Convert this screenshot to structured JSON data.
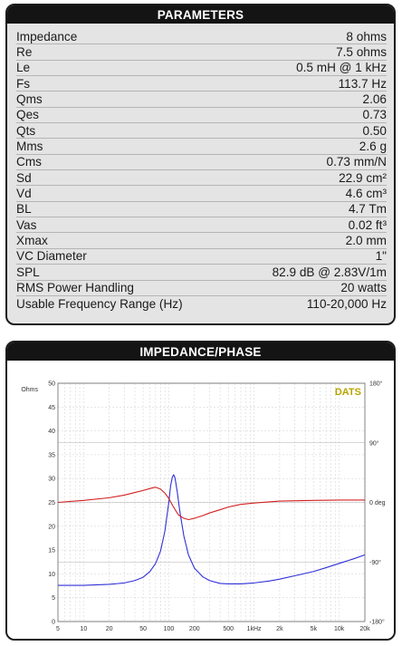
{
  "parameters": {
    "title": "PARAMETERS",
    "rows": [
      {
        "name": "Impedance",
        "value": "8 ohms"
      },
      {
        "name": "Re",
        "value": "7.5 ohms"
      },
      {
        "name": "Le",
        "value": "0.5 mH @ 1 kHz"
      },
      {
        "name": "Fs",
        "value": "113.7 Hz"
      },
      {
        "name": "Qms",
        "value": "2.06"
      },
      {
        "name": "Qes",
        "value": "0.73"
      },
      {
        "name": "Qts",
        "value": "0.50"
      },
      {
        "name": "Mms",
        "value": "2.6 g"
      },
      {
        "name": "Cms",
        "value": "0.73 mm/N"
      },
      {
        "name": "Sd",
        "value": "22.9 cm²"
      },
      {
        "name": "Vd",
        "value": "4.6 cm³"
      },
      {
        "name": "BL",
        "value": "4.7 Tm"
      },
      {
        "name": "Vas",
        "value": "0.02 ft³"
      },
      {
        "name": "Xmax",
        "value": "2.0 mm"
      },
      {
        "name": "VC Diameter",
        "value": "1\""
      },
      {
        "name": "SPL",
        "value": "82.9 dB @ 2.83V/1m"
      },
      {
        "name": "RMS Power Handling",
        "value": "20 watts"
      },
      {
        "name": "Usable Frequency Range (Hz)",
        "value": "110-20,000 Hz"
      }
    ]
  },
  "impedance_panel": {
    "title": "IMPEDANCE/PHASE",
    "brand": "DATS"
  },
  "colors": {
    "impedance": "#3030d8",
    "phase": "#d42020",
    "axis_label": "#3030d8",
    "brand": "#b8a400"
  },
  "chart_data": {
    "type": "line",
    "x_scale": "log",
    "xlim": [
      5,
      20000
    ],
    "x_ticks": [
      {
        "value": 5,
        "label": "5"
      },
      {
        "value": 10,
        "label": "10"
      },
      {
        "value": 20,
        "label": "20"
      },
      {
        "value": 50,
        "label": "50"
      },
      {
        "value": 100,
        "label": "100"
      },
      {
        "value": 200,
        "label": "200"
      },
      {
        "value": 500,
        "label": "500"
      },
      {
        "value": 1000,
        "label": "1kHz"
      },
      {
        "value": 2000,
        "label": "2k"
      },
      {
        "value": 5000,
        "label": "5k"
      },
      {
        "value": 10000,
        "label": "10k"
      },
      {
        "value": 20000,
        "label": "20k"
      }
    ],
    "grid": true,
    "y_left": {
      "label": "Ohms",
      "range": [
        0,
        50
      ],
      "ticks": [
        0,
        5,
        10,
        15,
        20,
        25,
        30,
        35,
        40,
        45,
        50
      ]
    },
    "y_right": {
      "range": [
        -180,
        180
      ],
      "ticks": [
        {
          "value": 180,
          "label": "180°"
        },
        {
          "value": 90,
          "label": "90°"
        },
        {
          "value": 0,
          "label": "0 deg"
        },
        {
          "value": -90,
          "label": "-90°"
        },
        {
          "value": -180,
          "label": "-180°"
        }
      ]
    },
    "series": [
      {
        "axis": "left",
        "color": "#3030d8",
        "points": [
          [
            5,
            7.6
          ],
          [
            10,
            7.6
          ],
          [
            20,
            7.8
          ],
          [
            30,
            8.1
          ],
          [
            40,
            8.6
          ],
          [
            50,
            9.3
          ],
          [
            60,
            10.5
          ],
          [
            70,
            12.2
          ],
          [
            80,
            14.8
          ],
          [
            90,
            19
          ],
          [
            100,
            25
          ],
          [
            105,
            28.5
          ],
          [
            110,
            30.3
          ],
          [
            114,
            30.8
          ],
          [
            118,
            30.2
          ],
          [
            125,
            27.5
          ],
          [
            135,
            23
          ],
          [
            150,
            18
          ],
          [
            170,
            14
          ],
          [
            200,
            11.2
          ],
          [
            250,
            9.4
          ],
          [
            300,
            8.6
          ],
          [
            400,
            8.0
          ],
          [
            500,
            7.9
          ],
          [
            700,
            7.9
          ],
          [
            1000,
            8.1
          ],
          [
            1500,
            8.5
          ],
          [
            2000,
            8.9
          ],
          [
            3000,
            9.6
          ],
          [
            5000,
            10.5
          ],
          [
            7000,
            11.3
          ],
          [
            10000,
            12.2
          ],
          [
            15000,
            13.2
          ],
          [
            20000,
            14
          ]
        ]
      },
      {
        "axis": "right",
        "color": "#d42020",
        "points": [
          [
            5,
            0
          ],
          [
            10,
            3
          ],
          [
            20,
            7
          ],
          [
            30,
            11
          ],
          [
            40,
            15
          ],
          [
            50,
            18
          ],
          [
            60,
            21
          ],
          [
            70,
            23
          ],
          [
            80,
            20
          ],
          [
            90,
            14
          ],
          [
            100,
            6
          ],
          [
            110,
            -4
          ],
          [
            120,
            -12
          ],
          [
            130,
            -19
          ],
          [
            150,
            -24
          ],
          [
            170,
            -26
          ],
          [
            200,
            -24
          ],
          [
            250,
            -20
          ],
          [
            300,
            -16
          ],
          [
            400,
            -11
          ],
          [
            500,
            -7
          ],
          [
            700,
            -3
          ],
          [
            1000,
            -1
          ],
          [
            2000,
            2
          ],
          [
            5000,
            3
          ],
          [
            10000,
            3.5
          ],
          [
            20000,
            3.5
          ]
        ]
      }
    ]
  }
}
